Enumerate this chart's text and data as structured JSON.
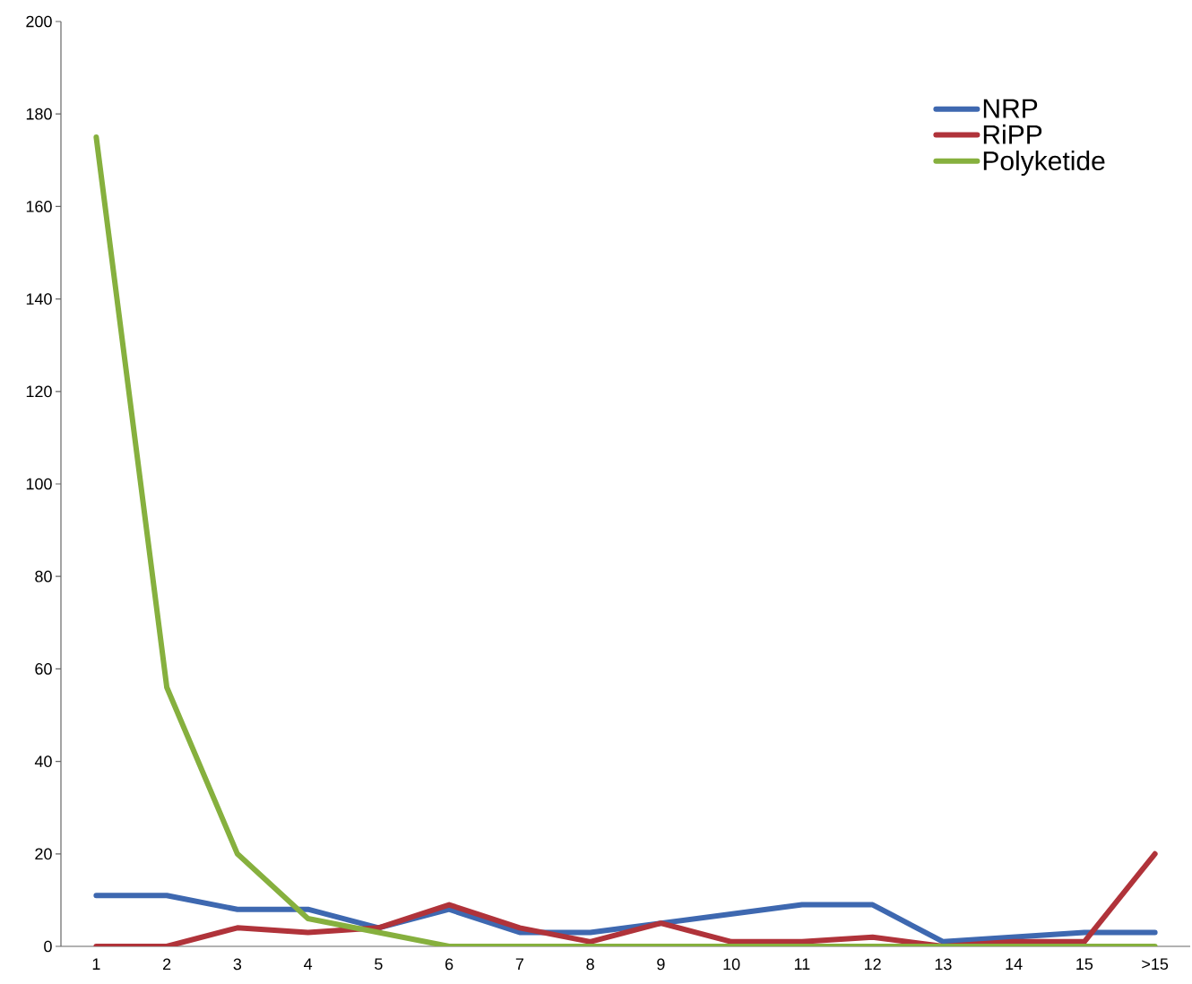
{
  "chart_data": {
    "type": "line",
    "categories": [
      "1",
      "2",
      "3",
      "4",
      "5",
      "6",
      "7",
      "8",
      "9",
      "10",
      "11",
      "12",
      "13",
      "14",
      "15",
      ">15"
    ],
    "series": [
      {
        "name": "NRP",
        "color": "#3e68b0",
        "values": [
          11,
          11,
          8,
          8,
          4,
          8,
          3,
          3,
          5,
          7,
          9,
          9,
          1,
          2,
          3,
          3
        ]
      },
      {
        "name": "RiPP",
        "color": "#b0333a",
        "values": [
          0,
          0,
          4,
          3,
          4,
          9,
          4,
          1,
          5,
          1,
          1,
          2,
          0,
          1,
          1,
          20
        ]
      },
      {
        "name": "Polyketide",
        "color": "#86b03e",
        "values": [
          175,
          56,
          20,
          6,
          3,
          0,
          0,
          0,
          0,
          0,
          0,
          0,
          0,
          0,
          0,
          0
        ]
      }
    ],
    "ylim": [
      0,
      200
    ],
    "yticks": [
      0,
      20,
      40,
      60,
      80,
      100,
      120,
      140,
      160,
      180,
      200
    ],
    "grid": false,
    "legend": "top right",
    "marker": "none",
    "line_style": "solid"
  }
}
